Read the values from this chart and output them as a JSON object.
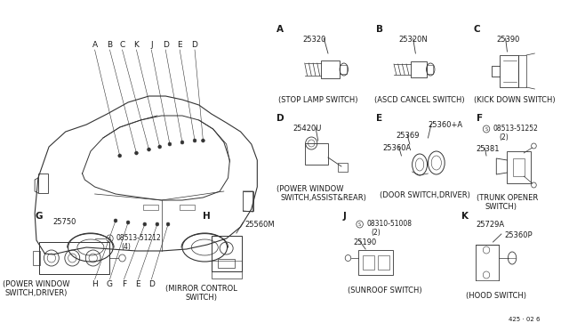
{
  "bg": "#ffffff",
  "text_color": "#1a1a1a",
  "line_color": "#333333",
  "fig_w": 6.4,
  "fig_h": 3.72,
  "page_code": "425 · 02 6",
  "sections": {
    "A": {
      "label": "A",
      "part": "25320",
      "cap1": "(STOP LAMP SWITCH)",
      "cap2": ""
    },
    "B": {
      "label": "B",
      "part": "25320N",
      "cap1": "(ASCD CANCEL SWITCH)",
      "cap2": ""
    },
    "C": {
      "label": "C",
      "part": "25390",
      "cap1": "(KICK DOWN SWITCH)",
      "cap2": ""
    },
    "D": {
      "label": "D",
      "part": "25420U",
      "cap1": "(POWER WINDOW",
      "cap2": "SWITCH,ASSIST&REAR)"
    },
    "E": {
      "label": "E",
      "parts": [
        "25360+A",
        "25369",
        "25360A"
      ],
      "cap1": "(DOOR SWITCH,DRIVER)",
      "cap2": ""
    },
    "F": {
      "label": "F",
      "parts": [
        "08513-51252",
        "(2)",
        "25381"
      ],
      "cap1": "(TRUNK OPENER",
      "cap2": "SWITCH)"
    },
    "G": {
      "label": "G",
      "parts": [
        "25750",
        "08513-51212",
        "(4)"
      ],
      "cap1": "(POWER WINDOW",
      "cap2": "SWITCH,DRIVER)"
    },
    "H": {
      "label": "H",
      "part": "25560M",
      "cap1": "(MIRROR CONTROL",
      "cap2": "SWITCH)"
    },
    "J": {
      "label": "J",
      "parts": [
        "08310-51008",
        "(2)",
        "25190"
      ],
      "cap1": "(SUNROOF SWITCH)",
      "cap2": ""
    },
    "K": {
      "label": "K",
      "parts": [
        "25729A",
        "25360P"
      ],
      "cap1": "(HOOD SWITCH)",
      "cap2": ""
    }
  },
  "top_car_labels": [
    "A",
    "B",
    "C",
    "K",
    "J",
    "D",
    "E",
    "D"
  ],
  "bot_car_labels": [
    "H",
    "G",
    "F",
    "E",
    "D"
  ]
}
